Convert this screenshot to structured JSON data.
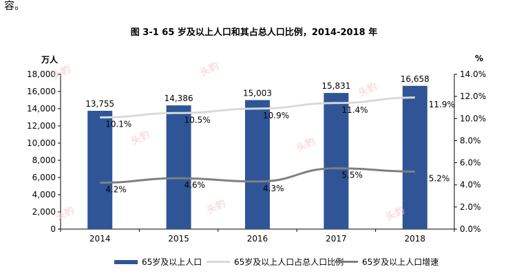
{
  "fragment_text": "容。",
  "chart_data": {
    "type": "bar+line",
    "title": "图 3-1 65 岁及以上人口和其占总人口比例，2014-2018 年",
    "categories": [
      "2014",
      "2015",
      "2016",
      "2017",
      "2018"
    ],
    "left_axis": {
      "unit": "万人",
      "range": [
        0,
        18000
      ],
      "ticks": [
        "0",
        "2,000",
        "4,000",
        "6,000",
        "8,000",
        "10,000",
        "12,000",
        "14,000",
        "16,000",
        "18,000"
      ]
    },
    "right_axis": {
      "unit": "%",
      "range": [
        0,
        14
      ],
      "ticks": [
        "0.0%",
        "2.0%",
        "4.0%",
        "6.0%",
        "8.0%",
        "10.0%",
        "12.0%",
        "14.0%"
      ]
    },
    "series": [
      {
        "name": "65岁及以上人口",
        "type": "bar",
        "axis": "left",
        "color": "#2f5597",
        "values": [
          13755,
          14386,
          15003,
          15831,
          16658
        ],
        "labels": [
          "13,755",
          "14,386",
          "15,003",
          "15,831",
          "16,658"
        ]
      },
      {
        "name": "65岁及以上人口占总人口比例",
        "type": "line",
        "axis": "right",
        "color": "#d9d9d9",
        "values": [
          10.1,
          10.5,
          10.9,
          11.4,
          11.9
        ],
        "labels": [
          "10.1%",
          "10.5%",
          "10.9%",
          "11.4%",
          "11.9%"
        ]
      },
      {
        "name": "65岁及以上人口增速",
        "type": "line",
        "axis": "right",
        "color": "#7f7f7f",
        "values": [
          4.2,
          4.6,
          4.3,
          5.5,
          5.2
        ],
        "labels": [
          "4.2%",
          "4.6%",
          "4.3%",
          "5.5%",
          "5.2%"
        ]
      }
    ]
  },
  "watermark_text": "头豹"
}
